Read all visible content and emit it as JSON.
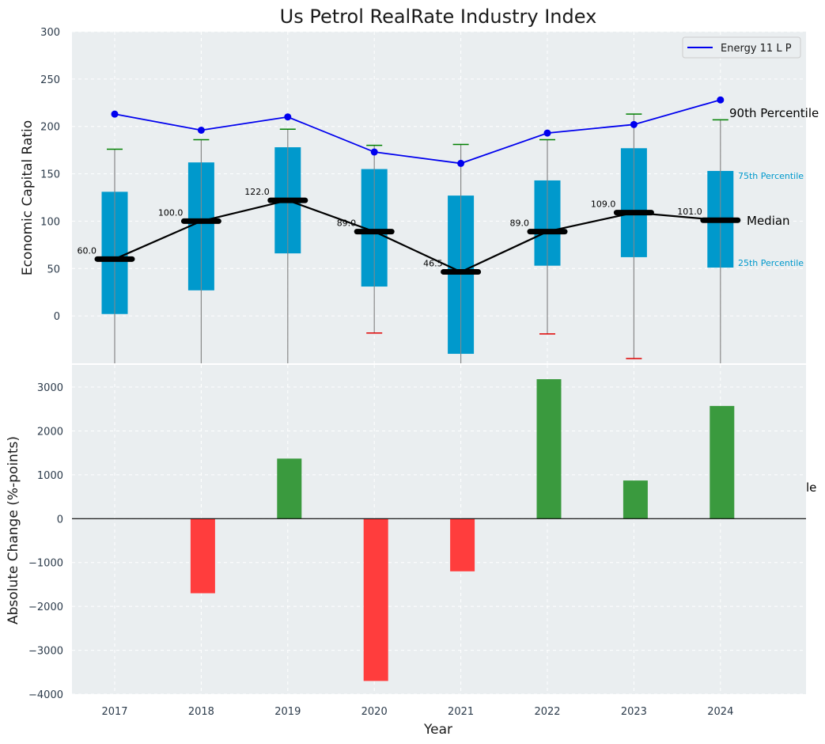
{
  "chart_data": [
    {
      "type": "boxplot",
      "title": "Us Petrol RealRate Industry Index",
      "xlabel": "",
      "ylabel": "Economic Capital Ratio",
      "ylim": [
        -50,
        300
      ],
      "yticks": [
        "0",
        "50",
        "100",
        "150",
        "200",
        "250",
        "300"
      ],
      "categories": [
        "2017",
        "2018",
        "2019",
        "2020",
        "2021",
        "2022",
        "2023",
        "2024"
      ],
      "grid": true,
      "colors": {
        "box": "#0099cc",
        "median": "#000000",
        "whisker": "#888888",
        "upper_cap": "#008000",
        "lower_cap": "#e00000",
        "line": "#0000ee"
      },
      "boxes": [
        {
          "x": "2017",
          "q1": 2,
          "median": 60.0,
          "q3": 131,
          "whisker_high": 176,
          "whisker_low": null,
          "median_label": "60.0"
        },
        {
          "x": "2018",
          "q1": 27,
          "median": 100.0,
          "q3": 162,
          "whisker_high": 186,
          "whisker_low": null,
          "median_label": "100.0"
        },
        {
          "x": "2019",
          "q1": 66,
          "median": 122.0,
          "q3": 178,
          "whisker_high": 197,
          "whisker_low": null,
          "median_label": "122.0"
        },
        {
          "x": "2020",
          "q1": 31,
          "median": 89.0,
          "q3": 155,
          "whisker_high": 180,
          "whisker_low": -18,
          "median_label": "89.0"
        },
        {
          "x": "2021",
          "q1": -40,
          "median": 46.5,
          "q3": 127,
          "whisker_high": 181,
          "whisker_low": null,
          "median_label": "46.5"
        },
        {
          "x": "2022",
          "q1": 53,
          "median": 89.0,
          "q3": 143,
          "whisker_high": 186,
          "whisker_low": -19,
          "median_label": "89.0"
        },
        {
          "x": "2023",
          "q1": 62,
          "median": 109.0,
          "q3": 177,
          "whisker_high": 213,
          "whisker_low": -45,
          "median_label": "109.0"
        },
        {
          "x": "2024",
          "q1": 51,
          "median": 101.0,
          "q3": 153,
          "whisker_high": 207,
          "whisker_low": null,
          "median_label": "101.0"
        }
      ],
      "line_series": {
        "name": "Energy 11 L P",
        "values": [
          213,
          196,
          210,
          173,
          161,
          193,
          202,
          228
        ]
      },
      "legend": {
        "position": "upper-right",
        "entries": [
          "Energy 11 L P"
        ]
      },
      "annotations": {
        "p90": "90th Percentile",
        "p75": "75th Percentile",
        "median": "Median",
        "p25": "25th Percentile"
      }
    },
    {
      "type": "bar",
      "title": "",
      "xlabel": "Year",
      "ylabel": "Absolute Change (%-points)",
      "ylim": [
        -4000,
        3500
      ],
      "yticks": [
        "−4000",
        "−3000",
        "−2000",
        "−1000",
        "0",
        "1000",
        "2000",
        "3000"
      ],
      "categories": [
        "2017",
        "2018",
        "2019",
        "2020",
        "2021",
        "2022",
        "2023",
        "2024"
      ],
      "values": [
        0,
        -1700,
        1370,
        -3700,
        -1200,
        3180,
        870,
        2570
      ],
      "colors": {
        "positive": "#3a9a3e",
        "negative": "#ff3d3d",
        "zero_line": "#000000"
      },
      "grid": true,
      "clipped_annotation": "le"
    }
  ]
}
